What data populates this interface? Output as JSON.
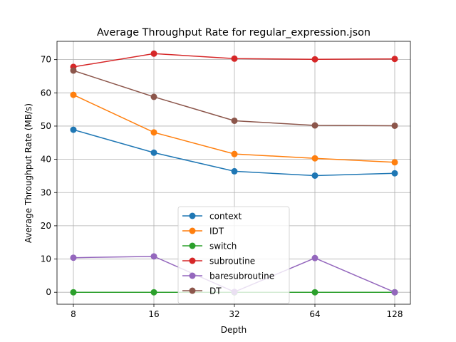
{
  "chart_data": {
    "type": "line",
    "title": "Average Throughput Rate for regular_expression.json",
    "xlabel": "Depth",
    "ylabel": "Average Throughput Rate (MB/s)",
    "x": [
      "8",
      "16",
      "32",
      "64",
      "128"
    ],
    "ylim": [
      -3.6,
      75.5
    ],
    "yticks": [
      0,
      10,
      20,
      30,
      40,
      50,
      60,
      70
    ],
    "grid": true,
    "legend_position": "lower-center",
    "series": [
      {
        "name": "context",
        "color": "#1f77b4",
        "values": [
          48.9,
          42.0,
          36.4,
          35.1,
          35.8
        ]
      },
      {
        "name": "IDT",
        "color": "#ff7f0e",
        "values": [
          59.4,
          48.1,
          41.6,
          40.3,
          39.1
        ]
      },
      {
        "name": "switch",
        "color": "#2ca02c",
        "values": [
          0.0,
          0.0,
          0.0,
          0.0,
          0.0
        ]
      },
      {
        "name": "subroutine",
        "color": "#d62728",
        "values": [
          67.8,
          71.8,
          70.3,
          70.1,
          70.2
        ]
      },
      {
        "name": "baresubroutine",
        "color": "#9467bd",
        "values": [
          10.4,
          10.8,
          0.1,
          10.3,
          0.0
        ]
      },
      {
        "name": "DT",
        "color": "#8c564b",
        "values": [
          66.7,
          58.8,
          51.6,
          50.2,
          50.1
        ]
      }
    ]
  }
}
